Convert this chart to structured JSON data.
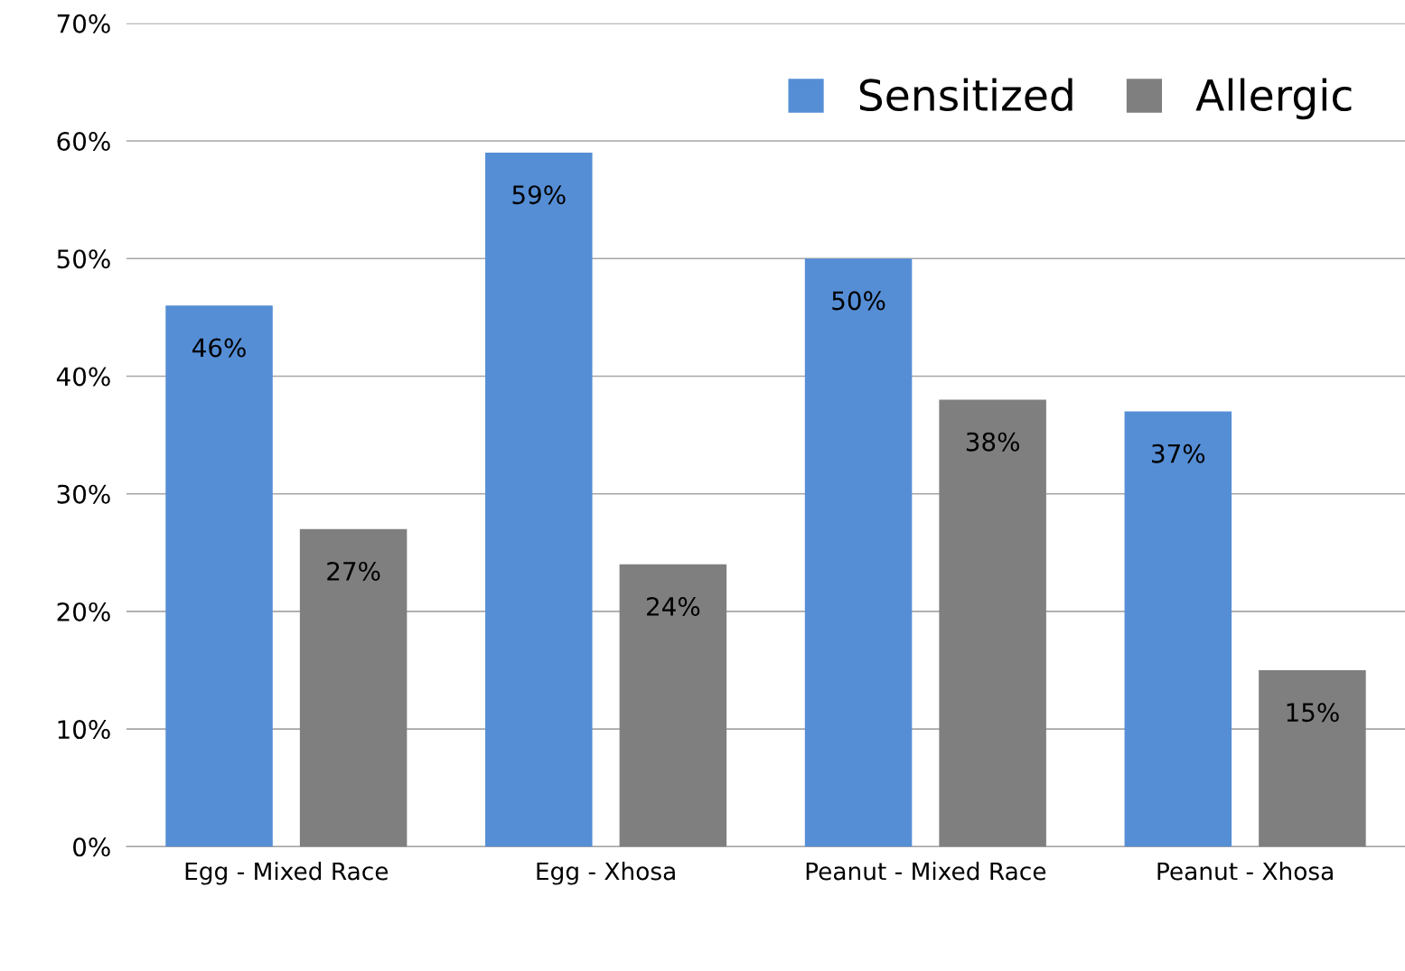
{
  "chart_data": {
    "type": "bar",
    "categories": [
      "Egg - Mixed Race",
      "Egg - Xhosa",
      "Peanut - Mixed Race",
      "Peanut - Xhosa"
    ],
    "series": [
      {
        "name": "Sensitized",
        "color": "#558ed5",
        "values": [
          46,
          59,
          50,
          37
        ],
        "value_labels": [
          "46%",
          "59%",
          "50%",
          "37%"
        ]
      },
      {
        "name": "Allergic",
        "color": "#7f7f7f",
        "values": [
          27,
          24,
          38,
          15
        ],
        "value_labels": [
          "27%",
          "24%",
          "38%",
          "15%"
        ]
      }
    ],
    "ylim": [
      0,
      70
    ],
    "yticks": [
      {
        "value": 0,
        "label": "0%"
      },
      {
        "value": 10,
        "label": "10%"
      },
      {
        "value": 20,
        "label": "20%"
      },
      {
        "value": 30,
        "label": "30%"
      },
      {
        "value": 40,
        "label": "40%"
      },
      {
        "value": 50,
        "label": "50%"
      },
      {
        "value": 60,
        "label": "60%"
      },
      {
        "value": 70,
        "label": "70%"
      }
    ],
    "grid": "y",
    "legend": "top right"
  }
}
